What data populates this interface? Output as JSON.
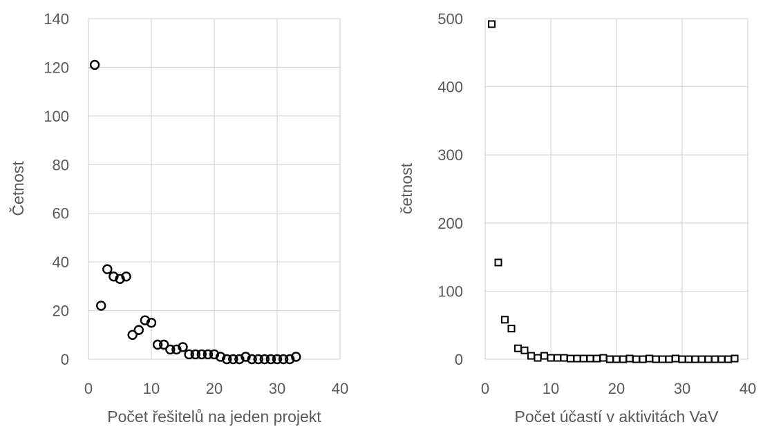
{
  "chart_data": [
    {
      "type": "scatter",
      "marker": "circle",
      "xlabel": "Počet řešitelů na jeden projekt",
      "ylabel": "Četnost",
      "xlim": [
        0,
        40
      ],
      "ylim": [
        0,
        140
      ],
      "xticks": [
        "0",
        "10",
        "20",
        "30",
        "40"
      ],
      "yticks": [
        "0",
        "20",
        "40",
        "60",
        "80",
        "100",
        "120",
        "140"
      ],
      "grid": true,
      "x": [
        1,
        2,
        3,
        4,
        5,
        6,
        7,
        8,
        9,
        10,
        11,
        12,
        13,
        14,
        15,
        16,
        17,
        18,
        19,
        20,
        21,
        22,
        23,
        24,
        25,
        26,
        27,
        28,
        29,
        30,
        31,
        32,
        33
      ],
      "y": [
        121,
        22,
        37,
        34,
        33,
        34,
        10,
        12,
        16,
        15,
        6,
        6,
        4,
        4,
        5,
        2,
        2,
        2,
        2,
        2,
        1,
        0,
        0,
        0,
        1,
        0,
        0,
        0,
        0,
        0,
        0,
        0,
        1
      ]
    },
    {
      "type": "scatter",
      "marker": "square",
      "xlabel": "Počet účastí v aktivitách VaV",
      "ylabel": "četnost",
      "xlim": [
        0,
        40
      ],
      "ylim": [
        0,
        500
      ],
      "xticks": [
        "0",
        "10",
        "20",
        "30",
        "40"
      ],
      "yticks": [
        "0",
        "100",
        "200",
        "300",
        "400",
        "500"
      ],
      "grid": true,
      "x": [
        1,
        2,
        3,
        4,
        5,
        6,
        7,
        8,
        9,
        10,
        11,
        12,
        13,
        14,
        15,
        16,
        17,
        18,
        19,
        20,
        21,
        22,
        23,
        24,
        25,
        26,
        27,
        28,
        29,
        30,
        31,
        32,
        33,
        34,
        35,
        36,
        37,
        38
      ],
      "y": [
        492,
        142,
        58,
        45,
        16,
        13,
        5,
        2,
        5,
        2,
        2,
        2,
        1,
        1,
        1,
        1,
        1,
        2,
        0,
        0,
        0,
        1,
        0,
        0,
        1,
        0,
        0,
        0,
        1,
        0,
        0,
        0,
        0,
        0,
        0,
        0,
        0,
        1
      ]
    }
  ]
}
